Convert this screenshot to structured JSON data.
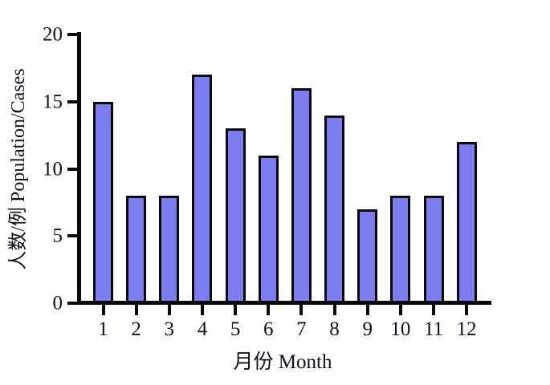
{
  "chart_data": {
    "type": "bar",
    "title": "",
    "categories": [
      "1",
      "2",
      "3",
      "4",
      "5",
      "6",
      "7",
      "8",
      "9",
      "10",
      "11",
      "12"
    ],
    "values": [
      15,
      8,
      8,
      17,
      13,
      11,
      16,
      14,
      7,
      8,
      8,
      12
    ],
    "xlabel": "月份 Month",
    "ylabel": "人数/例 Population/Cases",
    "ylim": [
      0,
      20
    ],
    "y_ticks": [
      0,
      5,
      10,
      15,
      20
    ],
    "grid": false,
    "legend": "none",
    "bar_fill_color": "#7b7cf0",
    "bar_border_color": "#0a0a0a",
    "axis_color": "#0a0a0a",
    "text_color": "#101022",
    "background_color": "#ffffff"
  }
}
